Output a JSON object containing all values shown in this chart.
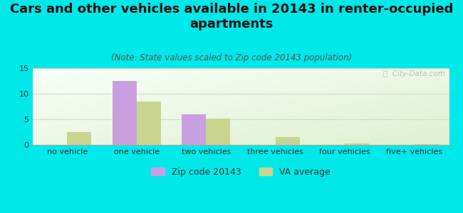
{
  "title": "Cars and other vehicles available in 20143 in renter-occupied\napartments",
  "subtitle": "(Note: State values scaled to Zip code 20143 population)",
  "categories": [
    "no vehicle",
    "one vehicle",
    "two vehicles",
    "three vehicles",
    "four vehicles",
    "five+ vehicles"
  ],
  "zip_values": [
    0,
    12.5,
    6.0,
    0,
    0,
    0
  ],
  "va_values": [
    2.5,
    8.5,
    5.2,
    1.5,
    0.3,
    0.2
  ],
  "zip_color": "#c8a0e0",
  "va_color": "#c8d490",
  "background_color": "#00e8e8",
  "ylim": [
    0,
    15
  ],
  "yticks": [
    0,
    5,
    10,
    15
  ],
  "bar_width": 0.35,
  "zip_label": "Zip code 20143",
  "va_label": "VA average",
  "watermark": "ⓘ  City-Data.com",
  "title_fontsize": 13,
  "subtitle_fontsize": 8.5,
  "tick_fontsize": 8,
  "legend_fontsize": 9
}
